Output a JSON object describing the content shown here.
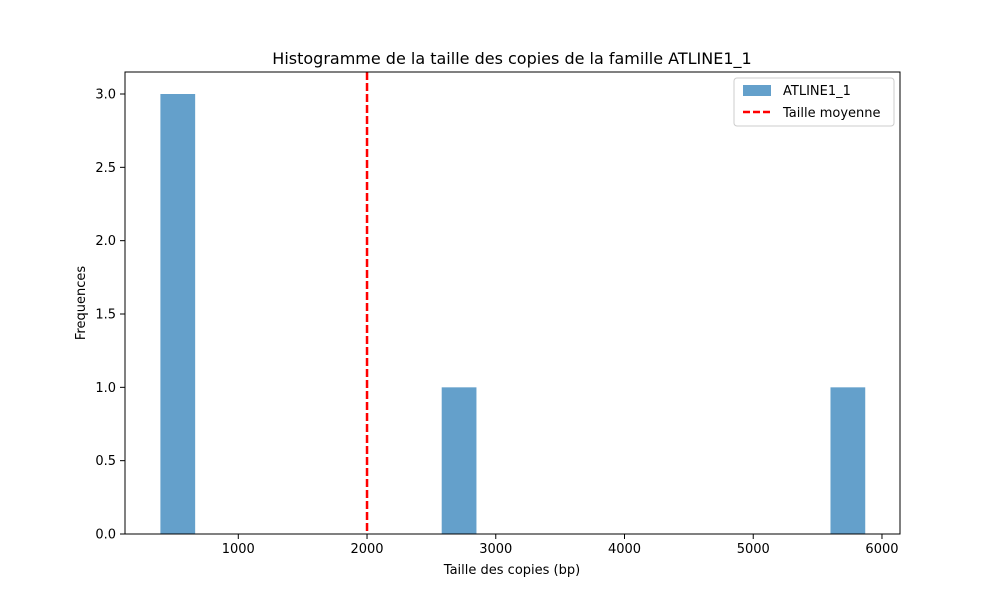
{
  "chart_data": {
    "type": "bar",
    "title": "Histogramme de la taille des copies de la famille ATLINE1_1",
    "xlabel": "Taille des copies (bp)",
    "ylabel": "Frequences",
    "xlim": [
      120,
      6140
    ],
    "ylim": [
      0,
      3.15
    ],
    "xticks": [
      1000,
      2000,
      3000,
      4000,
      5000,
      6000
    ],
    "yticks": [
      0.0,
      0.5,
      1.0,
      1.5,
      2.0,
      2.5,
      3.0
    ],
    "xtick_labels": [
      "1000",
      "2000",
      "3000",
      "4000",
      "5000",
      "6000"
    ],
    "ytick_labels": [
      "0.0",
      "0.5",
      "1.0",
      "1.5",
      "2.0",
      "2.5",
      "3.0"
    ],
    "bar_color": "#4f93c4",
    "bars": [
      {
        "x0": 395,
        "x1": 665,
        "value": 3
      },
      {
        "x0": 2580,
        "x1": 2850,
        "value": 1
      },
      {
        "x0": 5600,
        "x1": 5870,
        "value": 1
      }
    ],
    "mean_line": {
      "x": 2000,
      "color": "#ff0000",
      "style": "dashed"
    },
    "legend": {
      "position": "top-right",
      "entries": [
        {
          "label": "ATLINE1_1",
          "kind": "patch",
          "color": "#4f93c4"
        },
        {
          "label": "Taille moyenne",
          "kind": "line",
          "color": "#ff0000"
        }
      ]
    }
  }
}
